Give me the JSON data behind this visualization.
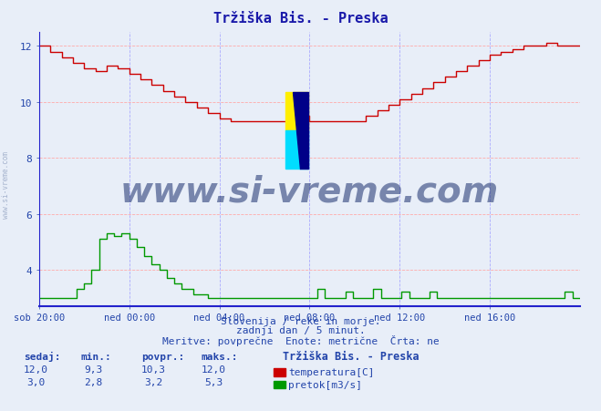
{
  "title": "Tržiška Bis. - Preska",
  "title_color": "#1a1aaa",
  "bg_color": "#e8eef8",
  "plot_bg_color": "#e8eef8",
  "grid_color": "#ffaaaa",
  "grid_color2": "#aaaaff",
  "axis_color": "#2222cc",
  "text_color": "#2244aa",
  "xlabel_ticks": [
    "sob 20:00",
    "ned 00:00",
    "ned 04:00",
    "ned 08:00",
    "ned 12:00",
    "ned 16:00"
  ],
  "ylabel_values": [
    4,
    6,
    8,
    10,
    12
  ],
  "ylim_min": 3.0,
  "ylim_max": 12.5,
  "xlim_min": 0,
  "xlim_max": 288,
  "temp_color": "#cc0000",
  "flow_color": "#009900",
  "watermark_text": "www.si-vreme.com",
  "watermark_color": "#1a2f6e",
  "watermark_alpha": 0.55,
  "watermark_fontsize": 28,
  "footer_line1": "Slovenija / reke in morje.",
  "footer_line2": "zadnji dan / 5 minut.",
  "footer_line3": "Meritve: povprečne  Enote: metrične  Črta: ne",
  "legend_title": "Tržiška Bis. - Preska",
  "legend_entries": [
    "temperatura[C]",
    "pretok[m3/s]"
  ],
  "legend_colors": [
    "#cc0000",
    "#009900"
  ],
  "stats_headers": [
    "sedaj:",
    "min.:",
    "povpr.:",
    "maks.:"
  ],
  "stats_temp": [
    "12,0",
    "9,3",
    "10,3",
    "12,0"
  ],
  "stats_flow": [
    "3,0",
    "2,8",
    "3,2",
    "5,3"
  ],
  "logo_yellow": "#ffee00",
  "logo_cyan": "#00ddff",
  "logo_navy": "#000088"
}
